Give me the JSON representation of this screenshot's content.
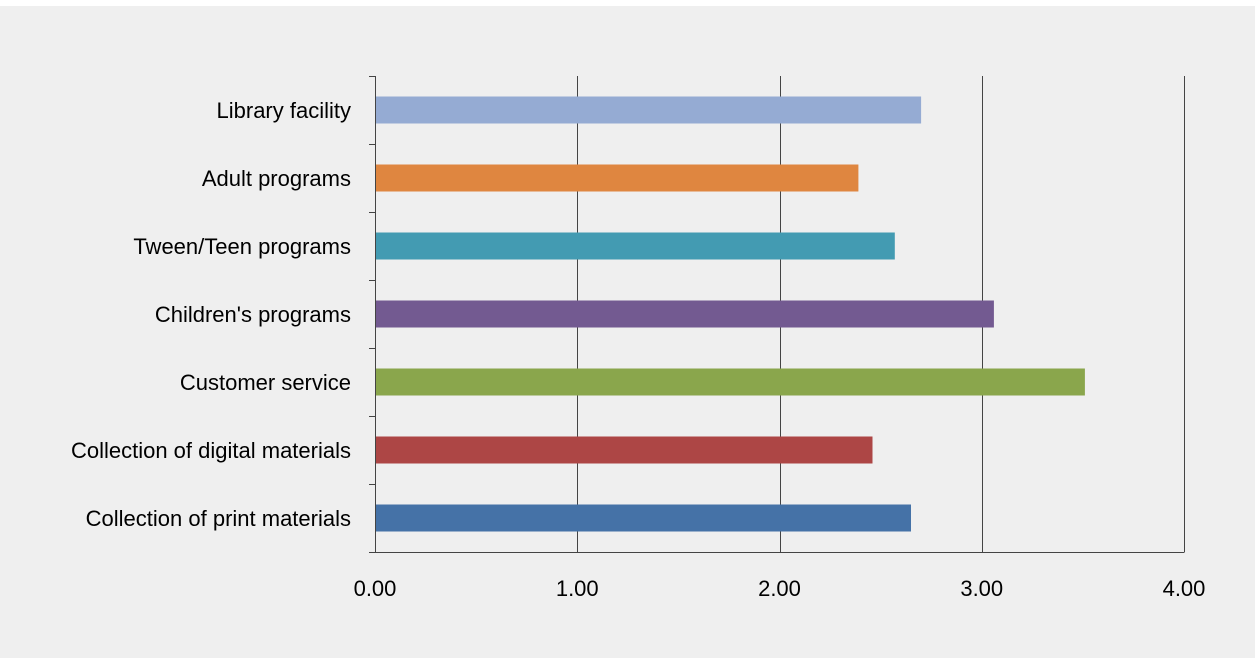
{
  "chart_data": {
    "type": "bar",
    "orientation": "horizontal",
    "title": "",
    "xlabel": "",
    "ylabel": "",
    "xlim": [
      0,
      4
    ],
    "grid": "vertical",
    "legend": "none",
    "categories": [
      "Library facility",
      "Adult programs",
      "Tween/Teen programs",
      "Children's programs",
      "Customer service",
      "Collection of digital materials",
      "Collection of print materials"
    ],
    "values": [
      2.7,
      2.39,
      2.57,
      3.06,
      3.51,
      2.46,
      2.65
    ],
    "colors": [
      "#95abd3",
      "#df8640",
      "#439bb2",
      "#735a91",
      "#8aa64c",
      "#ad4645",
      "#4572a7"
    ],
    "x_ticks": [
      "0.00",
      "1.00",
      "2.00",
      "3.00",
      "4.00"
    ],
    "x_tick_values": [
      0,
      1,
      2,
      3,
      4
    ]
  }
}
